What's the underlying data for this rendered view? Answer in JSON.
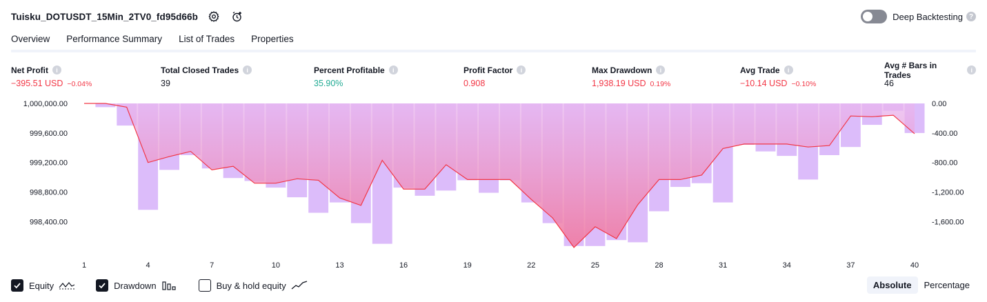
{
  "header": {
    "strategy_name": "Tuisku_DOTUSDT_15Min_2TV0_fd95d66b",
    "settings_icon": "gear-icon",
    "alert_icon": "add-alert-icon"
  },
  "deep_backtesting": {
    "label": "Deep Backtesting",
    "enabled": false,
    "help": "?"
  },
  "tabs": [
    {
      "label": "Overview",
      "active": true
    },
    {
      "label": "Performance Summary",
      "active": false
    },
    {
      "label": "List of Trades",
      "active": false
    },
    {
      "label": "Properties",
      "active": false
    }
  ],
  "metrics": [
    {
      "label": "Net Profit",
      "value": "−395.51 USD",
      "pct": "−0.04%",
      "tone": "neg"
    },
    {
      "label": "Total Closed Trades",
      "value": "39",
      "pct": "",
      "tone": "neutral"
    },
    {
      "label": "Percent Profitable",
      "value": "35.90%",
      "pct": "",
      "tone": "pos"
    },
    {
      "label": "Profit Factor",
      "value": "0.908",
      "pct": "",
      "tone": "neg"
    },
    {
      "label": "Max Drawdown",
      "value": "1,938.19 USD",
      "pct": "0.19%",
      "tone": "neg"
    },
    {
      "label": "Avg Trade",
      "value": "−10.14 USD",
      "pct": "−0.10%",
      "tone": "neg"
    },
    {
      "label": "Avg # Bars in Trades",
      "value": "46",
      "pct": "",
      "tone": "neutral"
    }
  ],
  "chart_data": {
    "type": "area",
    "x_ticks": [
      "1",
      "4",
      "7",
      "10",
      "13",
      "16",
      "19",
      "22",
      "25",
      "28",
      "31",
      "34",
      "37",
      "40"
    ],
    "left_axis": {
      "ticks": [
        "1,000,000.00",
        "999,600.00",
        "999,200.00",
        "998,800.00",
        "998,400.00"
      ],
      "tick_values": [
        1000000,
        999600,
        999200,
        998800,
        998400
      ],
      "range": [
        998040,
        1000000
      ]
    },
    "right_axis": {
      "ticks": [
        "0.00",
        "-400.00",
        "-800.00",
        "-1,200.00",
        "-1,600.00"
      ],
      "tick_values": [
        0,
        -400,
        -800,
        -1200,
        -1600
      ],
      "range": [
        -1960,
        0
      ]
    },
    "series": [
      {
        "type": "line",
        "x": [
          1,
          2,
          3,
          4,
          5,
          6,
          7,
          8,
          9,
          10,
          11,
          12,
          13,
          14,
          15,
          16,
          17,
          18,
          19,
          20,
          21,
          22,
          23,
          24,
          25,
          26,
          27,
          28,
          29,
          30,
          31,
          32,
          33,
          34,
          35,
          36,
          37,
          38,
          39,
          40
        ],
        "values": [
          1000000,
          1000000,
          999950,
          999200,
          999280,
          999350,
          999100,
          999150,
          998920,
          998920,
          998980,
          998960,
          998720,
          998620,
          999230,
          998840,
          998840,
          999170,
          998970,
          998970,
          998970,
          998700,
          998450,
          998050,
          998330,
          998170,
          998630,
          998970,
          998970,
          999030,
          999390,
          999450,
          999450,
          999450,
          999410,
          999430,
          999830,
          999820,
          999840,
          999590
        ]
      },
      {
        "type": "bar",
        "x": [
          1,
          2,
          3,
          4,
          5,
          6,
          7,
          8,
          9,
          10,
          11,
          12,
          13,
          14,
          15,
          16,
          17,
          18,
          19,
          20,
          21,
          22,
          23,
          24,
          25,
          26,
          27,
          28,
          29,
          30,
          31,
          32,
          33,
          34,
          35,
          36,
          37,
          38,
          39,
          40
        ],
        "values": [
          0,
          -50,
          -300,
          -1440,
          -900,
          -700,
          -880,
          -1010,
          -1050,
          -1140,
          -1270,
          -1480,
          -1340,
          -1620,
          -1900,
          -1140,
          -1250,
          -1180,
          -1040,
          -1210,
          -1040,
          -1340,
          -1620,
          -1930,
          -1930,
          -1850,
          -1880,
          -1460,
          -1130,
          -1080,
          -1340,
          -560,
          -650,
          -710,
          -1030,
          -700,
          -590,
          -290,
          -100,
          -400
        ]
      }
    ],
    "legend": [
      {
        "label": "Equity",
        "checked": true,
        "icon": "equity-line-icon"
      },
      {
        "label": "Drawdown",
        "checked": true,
        "icon": "drawdown-bars-icon"
      },
      {
        "label": "Buy & hold equity",
        "checked": false,
        "icon": "buy-hold-line-icon"
      }
    ],
    "grid": false
  },
  "view_mode": {
    "options": [
      "Absolute",
      "Percentage"
    ],
    "selected": "Absolute"
  }
}
